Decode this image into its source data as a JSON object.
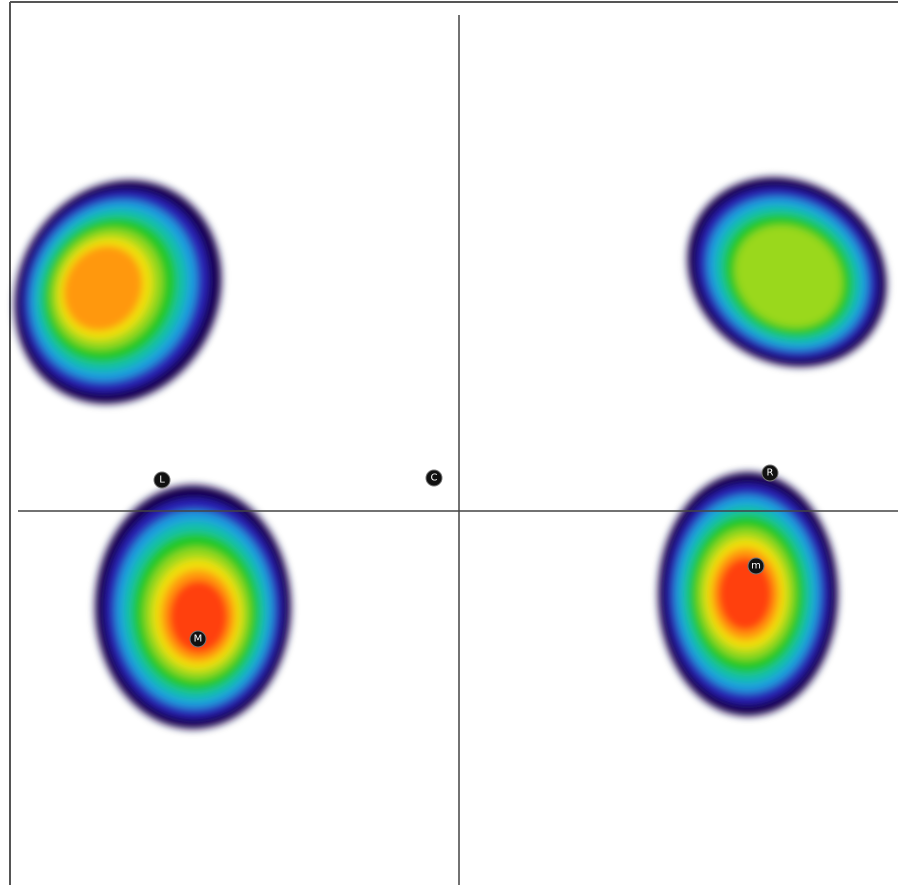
{
  "markers": [
    {
      "label": "L"
    },
    {
      "label": "C"
    },
    {
      "label": "R"
    },
    {
      "label": "M"
    },
    {
      "label": "m"
    }
  ]
}
